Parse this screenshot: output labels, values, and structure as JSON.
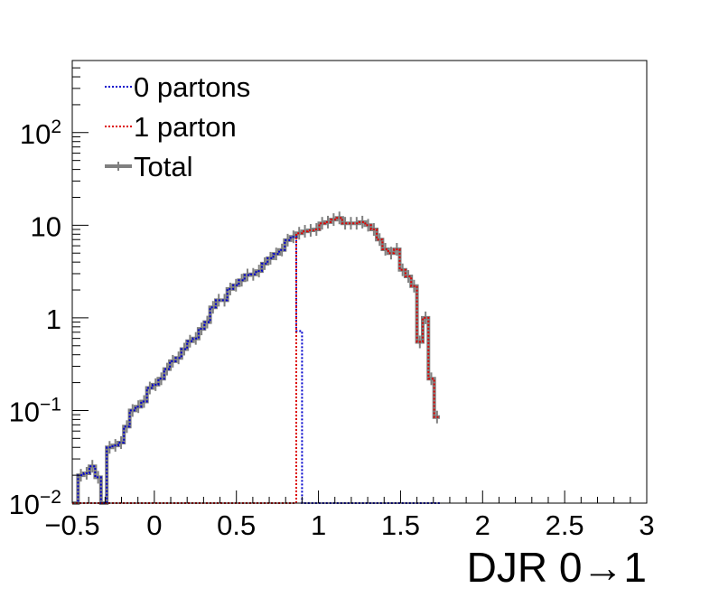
{
  "chart_data": {
    "type": "line",
    "xlabel": "DJR 0→1",
    "ylabel": "",
    "xlim": [
      -0.5,
      3.0
    ],
    "ylim": [
      0.01,
      600
    ],
    "yscale": "log",
    "x_tick_labels": [
      "−0.5",
      "0",
      "0.5",
      "1",
      "1.5",
      "2",
      "2.5",
      "3"
    ],
    "x_tick_values": [
      -0.5,
      0,
      0.5,
      1,
      1.5,
      2,
      2.5,
      3
    ],
    "y_tick_labels": [
      {
        "value": 0.01,
        "base": "10",
        "exp": "−2"
      },
      {
        "value": 0.1,
        "base": "10",
        "exp": "−1"
      },
      {
        "value": 1,
        "base": "1",
        "exp": ""
      },
      {
        "value": 10,
        "base": "10",
        "exp": ""
      },
      {
        "value": 100,
        "base": "10",
        "exp": "2"
      }
    ],
    "legend_position": "top-left",
    "legend": [
      {
        "label": "0 partons",
        "color": "#0000cc",
        "style": "dotted"
      },
      {
        "label": "1 parton",
        "color": "#dd0000",
        "style": "dotted"
      },
      {
        "label": "Total",
        "color": "#808080",
        "style": "solid"
      }
    ],
    "bin_width": 0.035,
    "x_start": -0.5,
    "series": [
      {
        "name": "Total",
        "values": [
          0.01,
          0.02,
          0.021,
          0.025,
          0.019,
          0.01,
          0.04,
          0.042,
          0.045,
          0.067,
          0.1,
          0.11,
          0.125,
          0.175,
          0.19,
          0.22,
          0.28,
          0.34,
          0.37,
          0.46,
          0.56,
          0.6,
          0.76,
          0.9,
          1.3,
          1.55,
          1.55,
          2.05,
          2.25,
          2.55,
          2.9,
          2.95,
          3.2,
          3.85,
          4.4,
          4.9,
          5.4,
          6.9,
          7.5,
          8.2,
          8.6,
          8.8,
          9.0,
          10.5,
          10.8,
          11.5,
          12.0,
          10.5,
          10.5,
          10.5,
          10.8,
          10.0,
          9.0,
          7.0,
          5.5,
          5.0,
          5.5,
          3.3,
          2.8,
          2.2,
          0.55,
          1.0,
          0.22,
          0.085
        ]
      },
      {
        "name": "0 partons",
        "values": [
          0.01,
          0.02,
          0.021,
          0.025,
          0.019,
          0.01,
          0.04,
          0.042,
          0.045,
          0.067,
          0.1,
          0.11,
          0.125,
          0.175,
          0.19,
          0.22,
          0.28,
          0.34,
          0.37,
          0.46,
          0.56,
          0.6,
          0.76,
          0.9,
          1.3,
          1.55,
          1.55,
          2.05,
          2.25,
          2.55,
          2.9,
          2.95,
          3.2,
          3.85,
          4.4,
          4.9,
          5.4,
          6.9,
          7.5,
          0.72,
          0.01,
          0.01,
          0.01,
          0.01,
          0.01,
          0.01,
          0.01,
          0.01,
          0.01,
          0.01,
          0.01,
          0.01,
          0.01,
          0.01,
          0.01,
          0.01,
          0.01,
          0.01,
          0.01,
          0.01,
          0.01,
          0.01,
          0.01,
          0.01
        ]
      },
      {
        "name": "1 parton",
        "values": [
          0.01,
          0.01,
          0.01,
          0.01,
          0.01,
          0.01,
          0.01,
          0.01,
          0.01,
          0.01,
          0.01,
          0.01,
          0.01,
          0.01,
          0.01,
          0.01,
          0.01,
          0.01,
          0.01,
          0.01,
          0.01,
          0.01,
          0.01,
          0.01,
          0.01,
          0.01,
          0.01,
          0.01,
          0.01,
          0.01,
          0.01,
          0.01,
          0.01,
          0.01,
          0.01,
          0.01,
          0.01,
          0.01,
          0.01,
          8.2,
          8.6,
          8.8,
          9.0,
          10.5,
          10.8,
          11.5,
          12.0,
          10.5,
          10.5,
          10.5,
          10.8,
          10.0,
          9.0,
          7.0,
          5.5,
          5.0,
          5.5,
          3.3,
          2.8,
          2.2,
          0.55,
          1.0,
          0.22,
          0.085
        ]
      }
    ]
  }
}
